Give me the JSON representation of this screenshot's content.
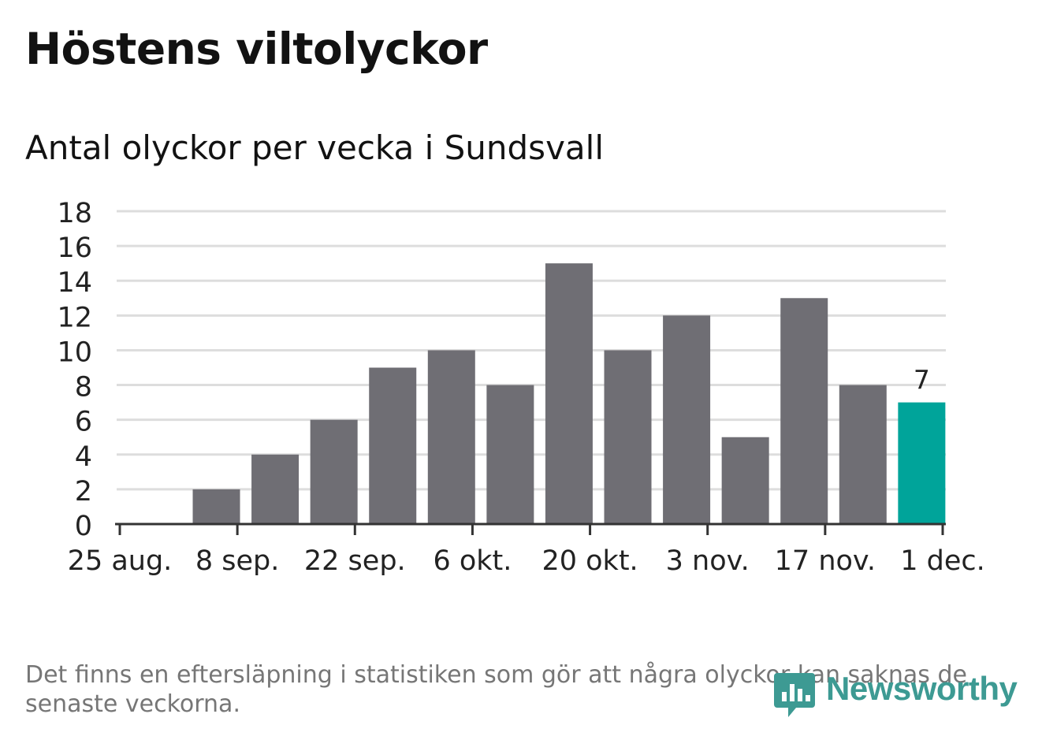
{
  "title": "Höstens viltolyckor",
  "subtitle": "Antal olyckor per vecka i Sundsvall",
  "footnote": "Det finns en eftersläpning i statistiken som gör att några olyckor kan saknas de senaste veckorna.",
  "logo": {
    "text": "Newsworthy",
    "icon": "bar-chart-speech-bubble-icon"
  },
  "colors": {
    "bar": "#6f6e74",
    "highlight": "#00a49a",
    "grid": "#dddddd",
    "axis": "#333333",
    "text": "#222222",
    "logo": "#3d9a93"
  },
  "chart_data": {
    "type": "bar",
    "title": "Höstens viltolyckor",
    "subtitle": "Antal olyckor per vecka i Sundsvall",
    "xlabel": "",
    "ylabel": "",
    "ylim": [
      0,
      18
    ],
    "yticks": [
      0,
      2,
      4,
      6,
      8,
      10,
      12,
      14,
      16,
      18
    ],
    "grid": true,
    "legend": "none",
    "xlim": [
      "2019-08-25",
      "2019-12-01"
    ],
    "xticks": [
      {
        "date": "2019-08-25",
        "label": "25 aug."
      },
      {
        "date": "2019-09-08",
        "label": "8 sep."
      },
      {
        "date": "2019-09-22",
        "label": "22 sep."
      },
      {
        "date": "2019-10-06",
        "label": "6 okt."
      },
      {
        "date": "2019-10-20",
        "label": "20 okt."
      },
      {
        "date": "2019-11-03",
        "label": "3 nov."
      },
      {
        "date": "2019-11-17",
        "label": "17 nov."
      },
      {
        "date": "2019-12-01",
        "label": "1 dec."
      }
    ],
    "x": [
      "2019-09-02",
      "2019-09-09",
      "2019-09-16",
      "2019-09-23",
      "2019-09-30",
      "2019-10-07",
      "2019-10-14",
      "2019-10-21",
      "2019-10-28",
      "2019-11-04",
      "2019-11-11",
      "2019-11-18",
      "2019-11-25"
    ],
    "values": [
      2,
      4,
      6,
      9,
      10,
      8,
      15,
      10,
      12,
      5,
      13,
      8,
      7
    ],
    "highlight_index": 12,
    "data_labels": [
      {
        "index": 12,
        "label": "7"
      }
    ]
  }
}
